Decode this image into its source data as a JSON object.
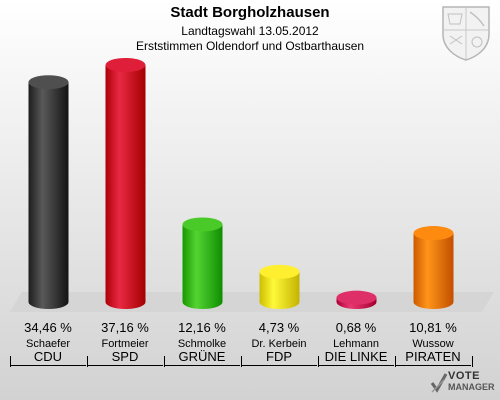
{
  "header": {
    "title": "Stadt Borgholzhausen",
    "subtitle": "Landtagswahl 13.05.2012",
    "subtitle2": "Erststimmen Oldendorf und Ostbarthausen"
  },
  "footer": {
    "logo_line1": "VOTE",
    "logo_line2": "MANAGER"
  },
  "chart_data": {
    "type": "bar",
    "title": "Stadt Borgholzhausen",
    "categories": [
      "CDU",
      "SPD",
      "GRÜNE",
      "FDP",
      "DIE LINKE",
      "PIRATEN"
    ],
    "candidates": [
      "Schaefer",
      "Fortmeier",
      "Schmolke",
      "Dr. Kerbein",
      "Lehmann",
      "Wussow"
    ],
    "values": [
      34.46,
      37.16,
      12.16,
      4.73,
      0.68,
      10.81
    ],
    "value_labels": [
      "34,46 %",
      "37,16 %",
      "12,16 %",
      "4,73 %",
      "0,68 %",
      "10,81 %"
    ],
    "colors": [
      "#404040",
      "#d0102a",
      "#3bbb1a",
      "#f0e020",
      "#d0205a",
      "#ef7c00"
    ],
    "ylim": [
      0,
      37.16
    ],
    "grid": false,
    "legend": "none"
  }
}
